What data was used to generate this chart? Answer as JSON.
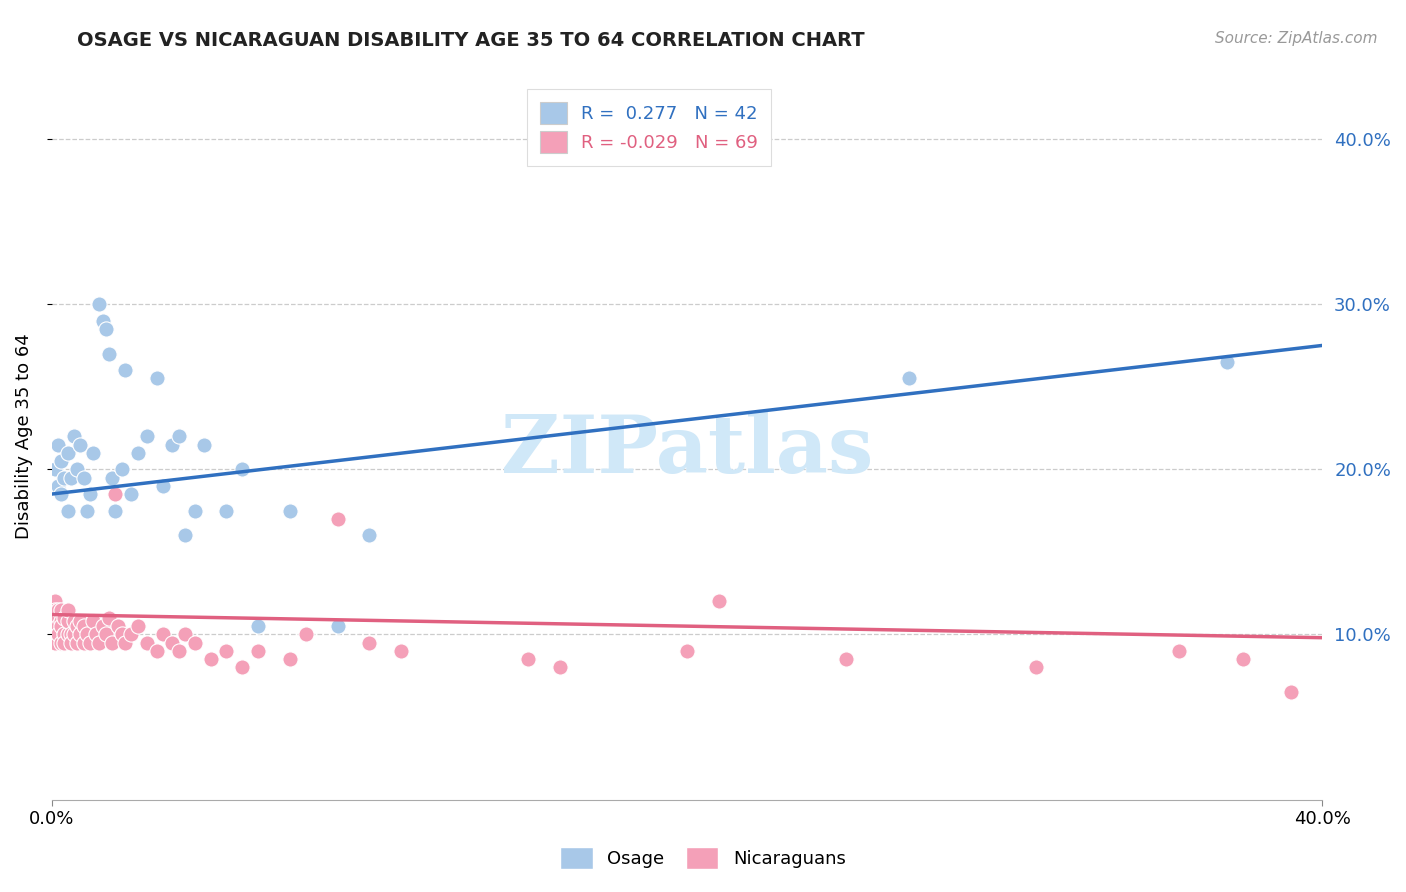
{
  "title": "OSAGE VS NICARAGUAN DISABILITY AGE 35 TO 64 CORRELATION CHART",
  "source_text": "Source: ZipAtlas.com",
  "ylabel": "Disability Age 35 to 64",
  "legend_line1": "R =  0.277   N = 42",
  "legend_line2": "R = -0.029   N = 69",
  "osage_R": 0.277,
  "nicaraguan_R": -0.029,
  "blue_color": "#a8c8e8",
  "pink_color": "#f4a0b8",
  "blue_line_color": "#3070c0",
  "pink_line_color": "#e06080",
  "watermark_color": "#d0e8f8",
  "background_color": "#ffffff",
  "grid_color": "#cccccc",
  "xmin": 0.0,
  "xmax": 0.4,
  "ymin": 0.0,
  "ymax": 0.44,
  "blue_trend_x0": 0.0,
  "blue_trend_y0": 0.185,
  "blue_trend_x1": 0.4,
  "blue_trend_y1": 0.275,
  "pink_trend_x0": 0.0,
  "pink_trend_y0": 0.112,
  "pink_trend_x1": 0.4,
  "pink_trend_y1": 0.098,
  "osage_x": [
    0.001,
    0.002,
    0.002,
    0.003,
    0.003,
    0.004,
    0.005,
    0.005,
    0.006,
    0.007,
    0.008,
    0.009,
    0.01,
    0.011,
    0.012,
    0.013,
    0.015,
    0.016,
    0.017,
    0.018,
    0.019,
    0.02,
    0.022,
    0.023,
    0.025,
    0.027,
    0.03,
    0.033,
    0.035,
    0.038,
    0.04,
    0.042,
    0.045,
    0.048,
    0.055,
    0.06,
    0.065,
    0.075,
    0.09,
    0.1,
    0.27,
    0.37
  ],
  "osage_y": [
    0.2,
    0.19,
    0.215,
    0.205,
    0.185,
    0.195,
    0.175,
    0.21,
    0.195,
    0.22,
    0.2,
    0.215,
    0.195,
    0.175,
    0.185,
    0.21,
    0.3,
    0.29,
    0.285,
    0.27,
    0.195,
    0.175,
    0.2,
    0.26,
    0.185,
    0.21,
    0.22,
    0.255,
    0.19,
    0.215,
    0.22,
    0.16,
    0.175,
    0.215,
    0.175,
    0.2,
    0.105,
    0.175,
    0.105,
    0.16,
    0.255,
    0.265
  ],
  "nicaraguan_x": [
    0.001,
    0.001,
    0.001,
    0.001,
    0.001,
    0.002,
    0.002,
    0.002,
    0.002,
    0.003,
    0.003,
    0.003,
    0.003,
    0.004,
    0.004,
    0.004,
    0.005,
    0.005,
    0.005,
    0.006,
    0.006,
    0.007,
    0.007,
    0.008,
    0.008,
    0.009,
    0.009,
    0.01,
    0.01,
    0.011,
    0.012,
    0.013,
    0.014,
    0.015,
    0.016,
    0.017,
    0.018,
    0.019,
    0.02,
    0.021,
    0.022,
    0.023,
    0.025,
    0.027,
    0.03,
    0.033,
    0.035,
    0.038,
    0.04,
    0.042,
    0.045,
    0.05,
    0.055,
    0.06,
    0.065,
    0.075,
    0.08,
    0.09,
    0.1,
    0.11,
    0.15,
    0.16,
    0.2,
    0.21,
    0.25,
    0.31,
    0.355,
    0.375,
    0.39
  ],
  "nicaraguan_y": [
    0.12,
    0.115,
    0.105,
    0.1,
    0.095,
    0.11,
    0.105,
    0.115,
    0.1,
    0.108,
    0.095,
    0.105,
    0.115,
    0.1,
    0.11,
    0.095,
    0.1,
    0.108,
    0.115,
    0.1,
    0.095,
    0.108,
    0.1,
    0.105,
    0.095,
    0.1,
    0.108,
    0.095,
    0.105,
    0.1,
    0.095,
    0.108,
    0.1,
    0.095,
    0.105,
    0.1,
    0.11,
    0.095,
    0.185,
    0.105,
    0.1,
    0.095,
    0.1,
    0.105,
    0.095,
    0.09,
    0.1,
    0.095,
    0.09,
    0.1,
    0.095,
    0.085,
    0.09,
    0.08,
    0.09,
    0.085,
    0.1,
    0.17,
    0.095,
    0.09,
    0.085,
    0.08,
    0.09,
    0.12,
    0.085,
    0.08,
    0.09,
    0.085,
    0.065
  ]
}
